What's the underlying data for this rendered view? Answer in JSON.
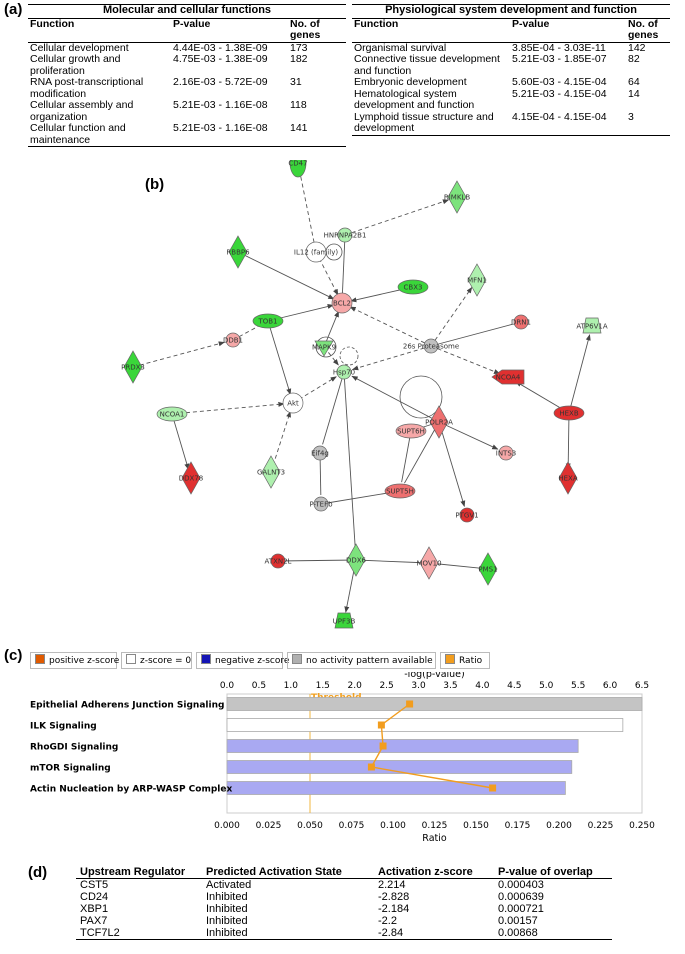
{
  "panel_a": {
    "label": "(a)",
    "left": {
      "title": "Molecular and cellular functions",
      "headers": [
        "Function",
        "P-value",
        "No. of genes"
      ],
      "rows": [
        [
          "Cellular development",
          "4.44E-03 - 1.38E-09",
          "173"
        ],
        [
          "Cellular growth and proliferation",
          "4.75E-03 - 1.38E-09",
          "182"
        ],
        [
          "RNA post-transcriptional modification",
          "2.16E-03 - 5.72E-09",
          "31"
        ],
        [
          "Cellular assembly and organization",
          "5.21E-03 - 1.16E-08",
          "118"
        ],
        [
          "Cellular function and maintenance",
          "5.21E-03 - 1.16E-08",
          "141"
        ]
      ]
    },
    "right": {
      "title": "Physiological system development and function",
      "headers": [
        "Function",
        "P-value",
        "No. of genes"
      ],
      "rows": [
        [
          "Organismal survival",
          "3.85E-04 - 3.03E-11",
          "142"
        ],
        [
          "Connective tissue development and function",
          "5.21E-03 - 1.85E-07",
          "82"
        ],
        [
          "Embryonic development",
          "5.60E-03 - 4.15E-04",
          "64"
        ],
        [
          "Hematological system development and function",
          "5.21E-03 - 4.15E-04",
          "14"
        ],
        [
          "Lymphoid tissue structure and development",
          "4.15E-04 - 4.15E-04",
          "3"
        ]
      ]
    }
  },
  "panel_b": {
    "label": "(b)",
    "colors": {
      "green_dark": "#3ad63a",
      "green_mid": "#7de37d",
      "green_light": "#aef0ae",
      "red_dark": "#e03030",
      "red_mid": "#ee7070",
      "red_light": "#f6a8a8",
      "grey": "#c0c0c0",
      "white": "#ffffff"
    },
    "nodes": [
      {
        "id": "CD47",
        "label": "CD47",
        "shape": "ellipse-v",
        "color": "green_dark"
      },
      {
        "id": "RIMKLB",
        "label": "RIMKLB",
        "shape": "diamond",
        "color": "green_mid"
      },
      {
        "id": "HNRNPA2B1",
        "label": "HNRNPA2B1",
        "shape": "circle-s",
        "color": "green_light"
      },
      {
        "id": "IL12",
        "label": "IL12 (family)",
        "shape": "circle",
        "color": "white"
      },
      {
        "id": "RBBP6",
        "label": "RBBP6",
        "shape": "diamond",
        "color": "green_dark"
      },
      {
        "id": "MFN1",
        "label": "MFN1",
        "shape": "diamond",
        "color": "green_light"
      },
      {
        "id": "BCL2",
        "label": "BCL2",
        "shape": "circle",
        "color": "red_light"
      },
      {
        "id": "CBX3",
        "label": "CBX3",
        "shape": "ellipse",
        "color": "green_dark"
      },
      {
        "id": "TOB1",
        "label": "TOB1",
        "shape": "ellipse",
        "color": "green_dark"
      },
      {
        "id": "DRN1",
        "label": "DRN1",
        "shape": "circle-s",
        "color": "red_mid"
      },
      {
        "id": "DDB1",
        "label": "DDB1",
        "shape": "circle-s",
        "color": "red_light"
      },
      {
        "id": "MAPK9",
        "label": "MAPK9",
        "shape": "triangle",
        "color": "green_mid"
      },
      {
        "id": "PROT",
        "label": "26s Proteasome",
        "shape": "circle-s",
        "color": "grey"
      },
      {
        "id": "ATP6V1A",
        "label": "ATP6V1A",
        "shape": "trapezoid",
        "color": "green_light"
      },
      {
        "id": "PRDX3",
        "label": "PRDX3",
        "shape": "diamond",
        "color": "green_dark"
      },
      {
        "id": "HSP70",
        "label": "Hsp70",
        "shape": "circle-s",
        "color": "green_light"
      },
      {
        "id": "NCOA4",
        "label": "NCOA4",
        "shape": "ellipse-r",
        "color": "red_dark"
      },
      {
        "id": "NCOA1",
        "label": "NCOA1",
        "shape": "ellipse",
        "color": "green_light"
      },
      {
        "id": "AKT",
        "label": "Akt",
        "shape": "circle",
        "color": "white"
      },
      {
        "id": "POLR2A",
        "label": "POLR2A",
        "shape": "diamond",
        "color": "red_mid"
      },
      {
        "id": "HEXB",
        "label": "HEXB",
        "shape": "ellipse",
        "color": "red_dark"
      },
      {
        "id": "SUPT6H",
        "label": "SUPT6H",
        "shape": "ellipse",
        "color": "red_light"
      },
      {
        "id": "INTS3",
        "label": "INTS3",
        "shape": "circle-s",
        "color": "red_light"
      },
      {
        "id": "EIF4G",
        "label": "Eif4g",
        "shape": "circle-s",
        "color": "grey"
      },
      {
        "id": "DDX78",
        "label": "DDX78",
        "shape": "diamond",
        "color": "red_dark"
      },
      {
        "id": "GALNT3",
        "label": "GALNT3",
        "shape": "diamond",
        "color": "green_light"
      },
      {
        "id": "HEXA",
        "label": "HEXA",
        "shape": "diamond",
        "color": "red_dark"
      },
      {
        "id": "SUPT5H",
        "label": "SUPT5H",
        "shape": "ellipse",
        "color": "red_mid"
      },
      {
        "id": "PTEF8",
        "label": "P-TEFb",
        "shape": "circle-s",
        "color": "grey"
      },
      {
        "id": "PTGV1",
        "label": "PTGV1",
        "shape": "circle-s",
        "color": "red_dark"
      },
      {
        "id": "ATXN2L",
        "label": "ATXN2L",
        "shape": "circle-s",
        "color": "red_dark"
      },
      {
        "id": "DDX6",
        "label": "DDX6",
        "shape": "diamond",
        "color": "green_mid"
      },
      {
        "id": "MOV10",
        "label": "MOV10",
        "shape": "diamond",
        "color": "red_light"
      },
      {
        "id": "PMS1",
        "label": "PMS1",
        "shape": "diamond",
        "color": "green_dark"
      },
      {
        "id": "UPF3B",
        "label": "UPF3B",
        "shape": "trapezoid",
        "color": "green_dark"
      }
    ],
    "edges": [
      [
        "CD47",
        "IL12",
        "dashed",
        false
      ],
      [
        "IL12",
        "BCL2",
        "dashed",
        true
      ],
      [
        "HNRNPA2B1",
        "RIMKLB",
        "dashed",
        true
      ],
      [
        "HNRNPA2B1",
        "BCL2",
        "solid",
        false
      ],
      [
        "RBBP6",
        "BCL2",
        "solid",
        true
      ],
      [
        "CBX3",
        "BCL2",
        "solid",
        true
      ],
      [
        "TOB1",
        "BCL2",
        "solid",
        true
      ],
      [
        "MAPK9",
        "BCL2",
        "solid",
        true
      ],
      [
        "PROT",
        "BCL2",
        "dashed",
        true
      ],
      [
        "PROT",
        "MFN1",
        "dashed",
        true
      ],
      [
        "PROT",
        "DRN1",
        "solid",
        false
      ],
      [
        "PROT",
        "NCOA4",
        "dashed",
        true
      ],
      [
        "PROT",
        "HSP70",
        "dashed",
        true
      ],
      [
        "DDB1",
        "TOB1",
        "dashed",
        false
      ],
      [
        "PRDX3",
        "DDB1",
        "dashed",
        true
      ],
      [
        "TOB1",
        "AKT",
        "solid",
        true
      ],
      [
        "NCOA1",
        "AKT",
        "dashed",
        true
      ],
      [
        "NCOA1",
        "DDX78",
        "solid",
        true
      ],
      [
        "GALNT3",
        "AKT",
        "dashed",
        true
      ],
      [
        "AKT",
        "HSP70",
        "dashed",
        true
      ],
      [
        "MAPK9",
        "HSP70",
        "dashed",
        true
      ],
      [
        "POLR2A",
        "HSP70",
        "solid",
        true
      ],
      [
        "POLR2A",
        "SUPT6H",
        "solid",
        false
      ],
      [
        "POLR2A",
        "INTS3",
        "solid",
        true
      ],
      [
        "POLR2A",
        "PTGV1",
        "solid",
        true
      ],
      [
        "POLR2A",
        "SUPT5H",
        "solid",
        false
      ],
      [
        "SUPT6H",
        "SUPT5H",
        "solid",
        false
      ],
      [
        "HSP70",
        "EIF4G",
        "solid",
        false
      ],
      [
        "EIF4G",
        "PTEF8",
        "solid",
        false
      ],
      [
        "PTEF8",
        "SUPT5H",
        "solid",
        false
      ],
      [
        "HEXB",
        "NCOA4",
        "solid",
        true
      ],
      [
        "HEXB",
        "ATP6V1A",
        "solid",
        true
      ],
      [
        "HEXB",
        "HEXA",
        "solid",
        true
      ],
      [
        "HSP70",
        "DDX6",
        "solid",
        false
      ],
      [
        "ATXN2L",
        "DDX6",
        "solid",
        false
      ],
      [
        "DDX6",
        "MOV10",
        "solid",
        false
      ],
      [
        "MOV10",
        "PMS1",
        "solid",
        false
      ],
      [
        "DDX6",
        "UPF3B",
        "solid",
        true
      ]
    ]
  },
  "panel_c": {
    "label": "(c)",
    "legend": [
      {
        "label": "positive z-score",
        "color": "#e05a00"
      },
      {
        "label": "z-score = 0",
        "color": "#ffffff"
      },
      {
        "label": "negative z-score",
        "color": "#1515b5"
      },
      {
        "label": "no activity pattern available",
        "color": "#b0b0b0"
      },
      {
        "label": "Ratio",
        "color": "#f29d1e"
      }
    ]
  },
  "chart_data": {
    "type": "bar",
    "orientation": "horizontal",
    "categories": [
      "Epithelial Adherens Junction Signaling",
      "ILK Signaling",
      "RhoGDI Signaling",
      "mTOR Signaling",
      "Actin Nucleation by ARP-WASP Complex"
    ],
    "series": [
      {
        "name": "-log(p-value)",
        "values": [
          6.5,
          6.2,
          5.5,
          5.4,
          5.3
        ],
        "fills": [
          "#c4c4c4",
          "#ffffff",
          "#a9a9f2",
          "#a9a9f2",
          "#a9a9f2"
        ]
      },
      {
        "name": "Ratio",
        "values": [
          0.11,
          0.093,
          0.094,
          0.087,
          0.16
        ],
        "color": "#f29d1e"
      }
    ],
    "top_axis": {
      "label": "-log(p-value)",
      "range": [
        0,
        6.5
      ],
      "ticks": [
        "0.0",
        "0.5",
        "1.0",
        "1.5",
        "2.0",
        "2.5",
        "3.0",
        "3.5",
        "4.0",
        "4.5",
        "5.0",
        "5.5",
        "6.0",
        "6.5"
      ]
    },
    "bottom_axis": {
      "label": "Ratio",
      "range": [
        0,
        0.25
      ],
      "ticks": [
        "0.000",
        "0.025",
        "0.050",
        "0.075",
        "0.100",
        "0.125",
        "0.150",
        "0.175",
        "0.200",
        "0.225",
        "0.250"
      ]
    },
    "threshold": {
      "label": "Threshold",
      "value": 1.3
    }
  },
  "panel_d": {
    "label": "(d)",
    "headers": [
      "Upstream Regulator",
      "Predicted Activation State",
      "Activation z-score",
      "P-value of overlap"
    ],
    "rows": [
      [
        "CST5",
        "Activated",
        "2.214",
        "0.000403"
      ],
      [
        "CD24",
        "Inhibited",
        "-2.828",
        "0.000639"
      ],
      [
        "XBP1",
        "Inhibited",
        "-2.184",
        "0.000721"
      ],
      [
        "PAX7",
        "Inhibited",
        "-2.2",
        "0.00157"
      ],
      [
        "TCF7L2",
        "Inhibited",
        "-2.84",
        "0.00868"
      ]
    ]
  }
}
